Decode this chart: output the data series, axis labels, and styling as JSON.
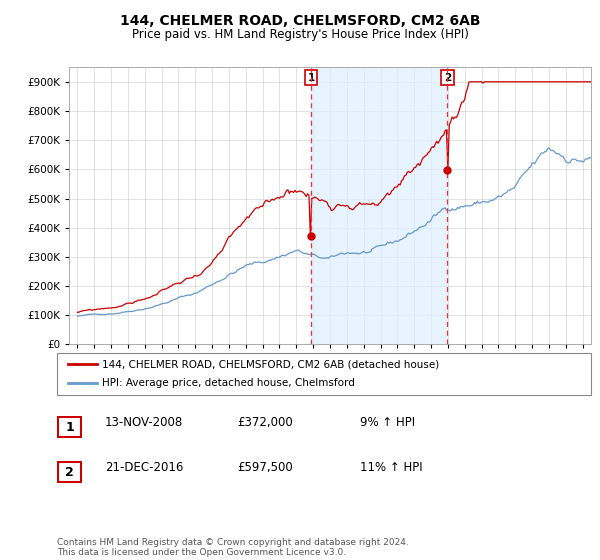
{
  "title1": "144, CHELMER ROAD, CHELMSFORD, CM2 6AB",
  "title2": "Price paid vs. HM Land Registry's House Price Index (HPI)",
  "yticks": [
    0,
    100000,
    200000,
    300000,
    400000,
    500000,
    600000,
    700000,
    800000,
    900000
  ],
  "ylim": [
    0,
    950000
  ],
  "xlim_start": 1994.5,
  "xlim_end": 2025.5,
  "xtick_years": [
    1995,
    1996,
    1997,
    1998,
    1999,
    2000,
    2001,
    2002,
    2003,
    2004,
    2005,
    2006,
    2007,
    2008,
    2009,
    2010,
    2011,
    2012,
    2013,
    2014,
    2015,
    2016,
    2017,
    2018,
    2019,
    2020,
    2021,
    2022,
    2023,
    2024,
    2025
  ],
  "property_color": "#cc0000",
  "hpi_color": "#6699cc",
  "hpi_fill_color": "#ddeeff",
  "vline_color": "#ee3333",
  "marker1_x": 2008.87,
  "marker1_y": 372000,
  "marker1_label": "1",
  "marker2_x": 2016.97,
  "marker2_y": 597500,
  "marker2_label": "2",
  "legend_property": "144, CHELMER ROAD, CHELMSFORD, CM2 6AB (detached house)",
  "legend_hpi": "HPI: Average price, detached house, Chelmsford",
  "annotation1_num": "1",
  "annotation1_date": "13-NOV-2008",
  "annotation1_price": "£372,000",
  "annotation1_hpi": "9% ↑ HPI",
  "annotation2_num": "2",
  "annotation2_date": "21-DEC-2016",
  "annotation2_price": "£597,500",
  "annotation2_hpi": "11% ↑ HPI",
  "footer": "Contains HM Land Registry data © Crown copyright and database right 2024.\nThis data is licensed under the Open Government Licence v3.0.",
  "background_color": "#ffffff",
  "plot_bg_color": "#ffffff",
  "grid_color": "#cccccc"
}
